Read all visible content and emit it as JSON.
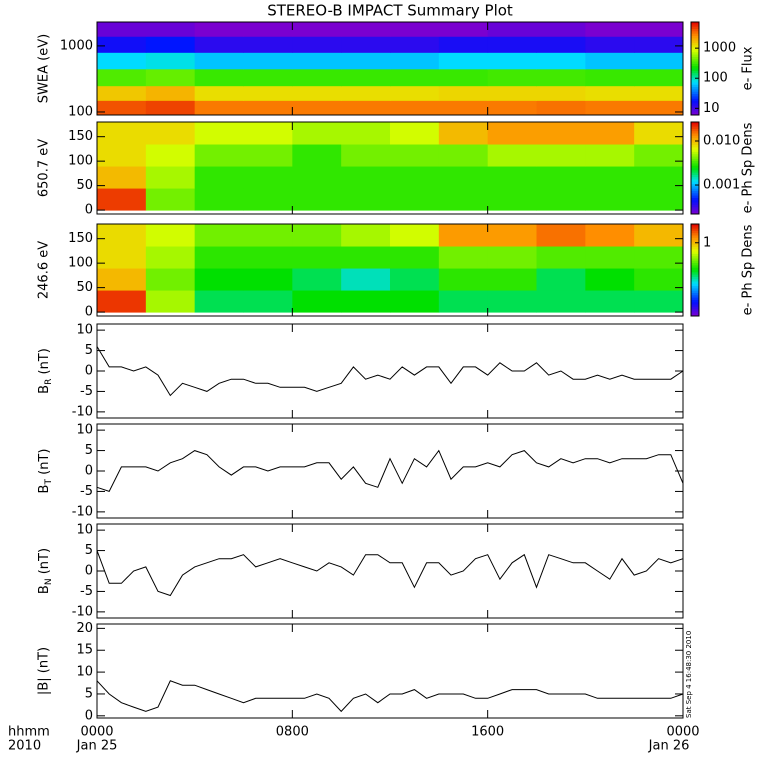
{
  "chart_data": [
    {
      "type": "heatmap",
      "title": "STEREO-B IMPACT Summary Plot",
      "ylabel": "SWEA (eV)",
      "ylog": true,
      "ylim": [
        90,
        2300
      ],
      "yticks": [
        100,
        1000
      ],
      "xlim": [
        0,
        24
      ],
      "x_edges": [
        0,
        2,
        4,
        6,
        8,
        10,
        12,
        14,
        16,
        18,
        20,
        22,
        24
      ],
      "y_edges": [
        90,
        150,
        250,
        450,
        800,
        1400,
        2300
      ],
      "values": [
        [
          4000,
          4500,
          3000,
          3000,
          3000,
          3000,
          3000,
          3000,
          3000,
          3200,
          3000,
          3000
        ],
        [
          1500,
          1800,
          1200,
          1200,
          1200,
          1200,
          1200,
          1300,
          1300,
          1300,
          1200,
          1200
        ],
        [
          350,
          400,
          300,
          300,
          300,
          300,
          300,
          300,
          320,
          320,
          300,
          300
        ],
        [
          70,
          80,
          60,
          60,
          60,
          60,
          60,
          70,
          70,
          70,
          60,
          60
        ],
        [
          15,
          18,
          12,
          12,
          12,
          12,
          12,
          14,
          14,
          14,
          12,
          12
        ],
        [
          7,
          7,
          6,
          6,
          6,
          6,
          6,
          6,
          7,
          7,
          6,
          6
        ]
      ],
      "clabel": "e- Flux",
      "clog": true,
      "clim": [
        6,
        7400
      ],
      "cticks": [
        10,
        100,
        1000
      ]
    },
    {
      "type": "heatmap",
      "ylabel": "650.7 eV",
      "ylim": [
        -8,
        180
      ],
      "yticks": [
        0,
        50,
        100,
        150
      ],
      "xlim": [
        0,
        24
      ],
      "x_edges": [
        0,
        2,
        4,
        6,
        8,
        10,
        12,
        14,
        16,
        18,
        20,
        22,
        24
      ],
      "y_edges": [
        0,
        45,
        90,
        135,
        180
      ],
      "values": [
        [
          0.02,
          0.004,
          0.003,
          0.003,
          0.003,
          0.003,
          0.003,
          0.003,
          0.003,
          0.003,
          0.003,
          0.003
        ],
        [
          0.01,
          0.005,
          0.003,
          0.003,
          0.003,
          0.003,
          0.003,
          0.003,
          0.003,
          0.003,
          0.003,
          0.003
        ],
        [
          0.008,
          0.006,
          0.004,
          0.004,
          0.003,
          0.004,
          0.004,
          0.004,
          0.005,
          0.005,
          0.005,
          0.004
        ],
        [
          0.008,
          0.008,
          0.006,
          0.006,
          0.005,
          0.005,
          0.006,
          0.01,
          0.012,
          0.012,
          0.012,
          0.008
        ]
      ],
      "clabel": "e- Ph Sp Dens",
      "clog": true,
      "clim": [
        0.00022,
        0.027
      ],
      "cticks": [
        0.001,
        {
          "value": 0.01,
          "label": "0.010"
        }
      ]
    },
    {
      "type": "heatmap",
      "ylabel": "246.6 eV",
      "ylim": [
        -8,
        180
      ],
      "yticks": [
        0,
        50,
        100,
        150
      ],
      "xlim": [
        0,
        24
      ],
      "x_edges": [
        0,
        2,
        4,
        6,
        8,
        10,
        12,
        14,
        16,
        18,
        20,
        22,
        24
      ],
      "y_edges": [
        0,
        45,
        90,
        135,
        180
      ],
      "values": [
        [
          2,
          0.5,
          0.2,
          0.2,
          0.25,
          0.25,
          0.25,
          0.2,
          0.2,
          0.2,
          0.2,
          0.2
        ],
        [
          1,
          0.4,
          0.25,
          0.25,
          0.2,
          0.15,
          0.2,
          0.3,
          0.3,
          0.2,
          0.25,
          0.3
        ],
        [
          0.8,
          0.5,
          0.3,
          0.3,
          0.3,
          0.3,
          0.3,
          0.4,
          0.4,
          0.35,
          0.35,
          0.35
        ],
        [
          0.8,
          0.6,
          0.4,
          0.4,
          0.4,
          0.5,
          0.6,
          1.2,
          1.2,
          1.5,
          1.3,
          1.0
        ]
      ],
      "clabel": "e- Ph Sp Dens",
      "clog": true,
      "clim": [
        0.024,
        2.6
      ],
      "cticks": [
        1
      ]
    },
    {
      "type": "line",
      "ylabel": "B",
      "ylabel_sub": "R",
      "ylabel_unit": " (nT)",
      "ylim": [
        -11.5,
        11.5
      ],
      "yticks": [
        -10,
        -5,
        0,
        5,
        10
      ],
      "xlim": [
        0,
        24
      ],
      "color": "#000000",
      "x": [
        0,
        0.5,
        1,
        1.5,
        2,
        2.5,
        3,
        3.5,
        4,
        4.5,
        5,
        5.5,
        6,
        6.5,
        7,
        7.5,
        8,
        8.5,
        9,
        9.5,
        10,
        10.5,
        11,
        11.5,
        12,
        12.5,
        13,
        13.5,
        14,
        14.5,
        15,
        15.5,
        16,
        16.5,
        17,
        17.5,
        18,
        18.5,
        19,
        19.5,
        20,
        20.5,
        21,
        21.5,
        22,
        22.5,
        23,
        23.5,
        24
      ],
      "values": [
        6,
        1,
        1,
        0,
        1,
        -1,
        -6,
        -3,
        -4,
        -5,
        -3,
        -2,
        -2,
        -3,
        -3,
        -4,
        -4,
        -4,
        -5,
        -4,
        -3,
        1,
        -2,
        -1,
        -2,
        1,
        -1,
        1,
        1,
        -3,
        1,
        1,
        -1,
        2,
        0,
        0,
        2,
        -1,
        0,
        -2,
        -2,
        -1,
        -2,
        -1,
        -2,
        -2,
        -2,
        -2,
        0
      ]
    },
    {
      "type": "line",
      "ylabel": "B",
      "ylabel_sub": "T",
      "ylabel_unit": " (nT)",
      "ylim": [
        -11.5,
        11.5
      ],
      "yticks": [
        -10,
        -5,
        0,
        5,
        10
      ],
      "xlim": [
        0,
        24
      ],
      "color": "#000000",
      "x": [
        0,
        0.5,
        1,
        1.5,
        2,
        2.5,
        3,
        3.5,
        4,
        4.5,
        5,
        5.5,
        6,
        6.5,
        7,
        7.5,
        8,
        8.5,
        9,
        9.5,
        10,
        10.5,
        11,
        11.5,
        12,
        12.5,
        13,
        13.5,
        14,
        14.5,
        15,
        15.5,
        16,
        16.5,
        17,
        17.5,
        18,
        18.5,
        19,
        19.5,
        20,
        20.5,
        21,
        21.5,
        22,
        22.5,
        23,
        23.5,
        24
      ],
      "values": [
        -4,
        -5,
        1,
        1,
        1,
        0,
        2,
        3,
        5,
        4,
        1,
        -1,
        1,
        1,
        0,
        1,
        1,
        1,
        2,
        2,
        -2,
        1,
        -3,
        -4,
        3,
        -3,
        3,
        1,
        5,
        -2,
        1,
        1,
        2,
        1,
        4,
        5,
        2,
        1,
        3,
        2,
        3,
        3,
        2,
        3,
        3,
        3,
        4,
        4,
        -3
      ]
    },
    {
      "type": "line",
      "ylabel": "B",
      "ylabel_sub": "N",
      "ylabel_unit": " (nT)",
      "ylim": [
        -11.5,
        11.5
      ],
      "yticks": [
        -10,
        -5,
        0,
        5,
        10
      ],
      "xlim": [
        0,
        24
      ],
      "color": "#000000",
      "x": [
        0,
        0.5,
        1,
        1.5,
        2,
        2.5,
        3,
        3.5,
        4,
        4.5,
        5,
        5.5,
        6,
        6.5,
        7,
        7.5,
        8,
        8.5,
        9,
        9.5,
        10,
        10.5,
        11,
        11.5,
        12,
        12.5,
        13,
        13.5,
        14,
        14.5,
        15,
        15.5,
        16,
        16.5,
        17,
        17.5,
        18,
        18.5,
        19,
        19.5,
        20,
        20.5,
        21,
        21.5,
        22,
        22.5,
        23,
        23.5,
        24
      ],
      "values": [
        5,
        -3,
        -3,
        0,
        1,
        -5,
        -6,
        -1,
        1,
        2,
        3,
        3,
        4,
        1,
        2,
        3,
        2,
        1,
        0,
        2,
        1,
        -1,
        4,
        4,
        2,
        2,
        -4,
        2,
        2,
        -1,
        0,
        3,
        4,
        -2,
        2,
        4,
        -4,
        4,
        3,
        2,
        2,
        0,
        -2,
        3,
        -1,
        0,
        3,
        2,
        3
      ]
    },
    {
      "type": "line",
      "ylabel": "|B| (nT)",
      "ylim": [
        -0.5,
        21
      ],
      "yticks": [
        0,
        5,
        10,
        15,
        20
      ],
      "xlim": [
        0,
        24
      ],
      "color": "#000000",
      "x": [
        0,
        0.5,
        1,
        1.5,
        2,
        2.5,
        3,
        3.5,
        4,
        4.5,
        5,
        5.5,
        6,
        6.5,
        7,
        7.5,
        8,
        8.5,
        9,
        9.5,
        10,
        10.5,
        11,
        11.5,
        12,
        12.5,
        13,
        13.5,
        14,
        14.5,
        15,
        15.5,
        16,
        16.5,
        17,
        17.5,
        18,
        18.5,
        19,
        19.5,
        20,
        20.5,
        21,
        21.5,
        22,
        22.5,
        23,
        23.5,
        24
      ],
      "values": [
        8,
        5,
        3,
        2,
        1,
        2,
        8,
        7,
        7,
        6,
        5,
        4,
        3,
        4,
        4,
        4,
        4,
        4,
        5,
        4,
        1,
        4,
        5,
        3,
        5,
        5,
        6,
        4,
        5,
        5,
        5,
        4,
        4,
        5,
        6,
        6,
        6,
        5,
        5,
        5,
        5,
        4,
        4,
        4,
        4,
        4,
        4,
        4,
        5
      ],
      "xticks": [
        {
          "value": 0,
          "label": "0000"
        },
        {
          "value": 8,
          "label": "0800"
        },
        {
          "value": 16,
          "label": "1600"
        },
        {
          "value": 24,
          "label": "0000"
        }
      ],
      "xlabel": "hhmm",
      "year": "2010",
      "date_start": "Jan 25",
      "date_end": "Jan 26",
      "timestamp": "Sat Sep  4 16:48:30 2010"
    }
  ]
}
